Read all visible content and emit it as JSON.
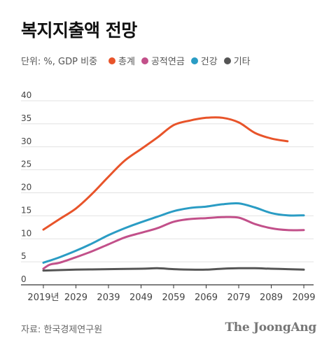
{
  "title": "복지지출액 전망",
  "legend": {
    "unit": "단위: %, GDP 비중"
  },
  "source": "자료: 한국경제연구원",
  "brand": "The JoongAng",
  "colors": {
    "total": "#e8542a",
    "pension": "#c2508a",
    "health": "#2a9cc4",
    "other": "#555555",
    "grid": "#e2e2e2",
    "axis": "#333333"
  },
  "chart_data": {
    "type": "line",
    "title": "복지지출액 전망",
    "ylabel": "단위: %, GDP 비중",
    "ylim": [
      0,
      40
    ],
    "yticks": [
      "0",
      "5",
      "10",
      "15",
      "20",
      "25",
      "30",
      "35",
      "40"
    ],
    "xlim": [
      2016,
      2102
    ],
    "xticks": [
      {
        "x": 2019,
        "label": "2019년"
      },
      {
        "x": 2029,
        "label": "2029"
      },
      {
        "x": 2039,
        "label": "2039"
      },
      {
        "x": 2049,
        "label": "2049"
      },
      {
        "x": 2059,
        "label": "2059"
      },
      {
        "x": 2069,
        "label": "2069"
      },
      {
        "x": 2079,
        "label": "2079"
      },
      {
        "x": 2089,
        "label": "2089"
      },
      {
        "x": 2099,
        "label": "2099"
      }
    ],
    "grid": true,
    "legend_position": "top-left",
    "series": [
      {
        "name": "총계",
        "color": "#e8542a",
        "points": [
          [
            2019,
            12.0
          ],
          [
            2024,
            14.3
          ],
          [
            2029,
            16.6
          ],
          [
            2034,
            19.8
          ],
          [
            2039,
            23.5
          ],
          [
            2044,
            27.0
          ],
          [
            2049,
            29.5
          ],
          [
            2054,
            32.0
          ],
          [
            2059,
            34.7
          ],
          [
            2064,
            35.7
          ],
          [
            2069,
            36.3
          ],
          [
            2074,
            36.3
          ],
          [
            2079,
            35.3
          ],
          [
            2084,
            33.0
          ],
          [
            2089,
            31.8
          ],
          [
            2094,
            31.2
          ]
        ]
      },
      {
        "name": "공적연금",
        "color": "#c2508a",
        "points": [
          [
            2019,
            3.5
          ],
          [
            2021,
            4.4
          ],
          [
            2024,
            4.8
          ],
          [
            2029,
            6.0
          ],
          [
            2034,
            7.3
          ],
          [
            2039,
            8.8
          ],
          [
            2044,
            10.3
          ],
          [
            2049,
            11.3
          ],
          [
            2054,
            12.3
          ],
          [
            2059,
            13.7
          ],
          [
            2064,
            14.3
          ],
          [
            2069,
            14.5
          ],
          [
            2074,
            14.7
          ],
          [
            2079,
            14.6
          ],
          [
            2084,
            13.2
          ],
          [
            2089,
            12.3
          ],
          [
            2094,
            11.9
          ],
          [
            2099,
            11.9
          ]
        ]
      },
      {
        "name": "건강",
        "color": "#2a9cc4",
        "points": [
          [
            2019,
            4.8
          ],
          [
            2024,
            6.0
          ],
          [
            2029,
            7.4
          ],
          [
            2034,
            9.0
          ],
          [
            2039,
            10.8
          ],
          [
            2044,
            12.3
          ],
          [
            2049,
            13.6
          ],
          [
            2054,
            14.8
          ],
          [
            2059,
            16.0
          ],
          [
            2064,
            16.7
          ],
          [
            2069,
            17.0
          ],
          [
            2074,
            17.5
          ],
          [
            2079,
            17.7
          ],
          [
            2084,
            16.8
          ],
          [
            2089,
            15.6
          ],
          [
            2094,
            15.1
          ],
          [
            2099,
            15.1
          ]
        ]
      },
      {
        "name": "기타",
        "color": "#555555",
        "points": [
          [
            2019,
            3.1
          ],
          [
            2029,
            3.3
          ],
          [
            2039,
            3.4
          ],
          [
            2049,
            3.5
          ],
          [
            2054,
            3.6
          ],
          [
            2059,
            3.4
          ],
          [
            2064,
            3.3
          ],
          [
            2069,
            3.3
          ],
          [
            2074,
            3.5
          ],
          [
            2079,
            3.6
          ],
          [
            2084,
            3.6
          ],
          [
            2089,
            3.5
          ],
          [
            2094,
            3.4
          ],
          [
            2099,
            3.3
          ]
        ]
      }
    ]
  }
}
